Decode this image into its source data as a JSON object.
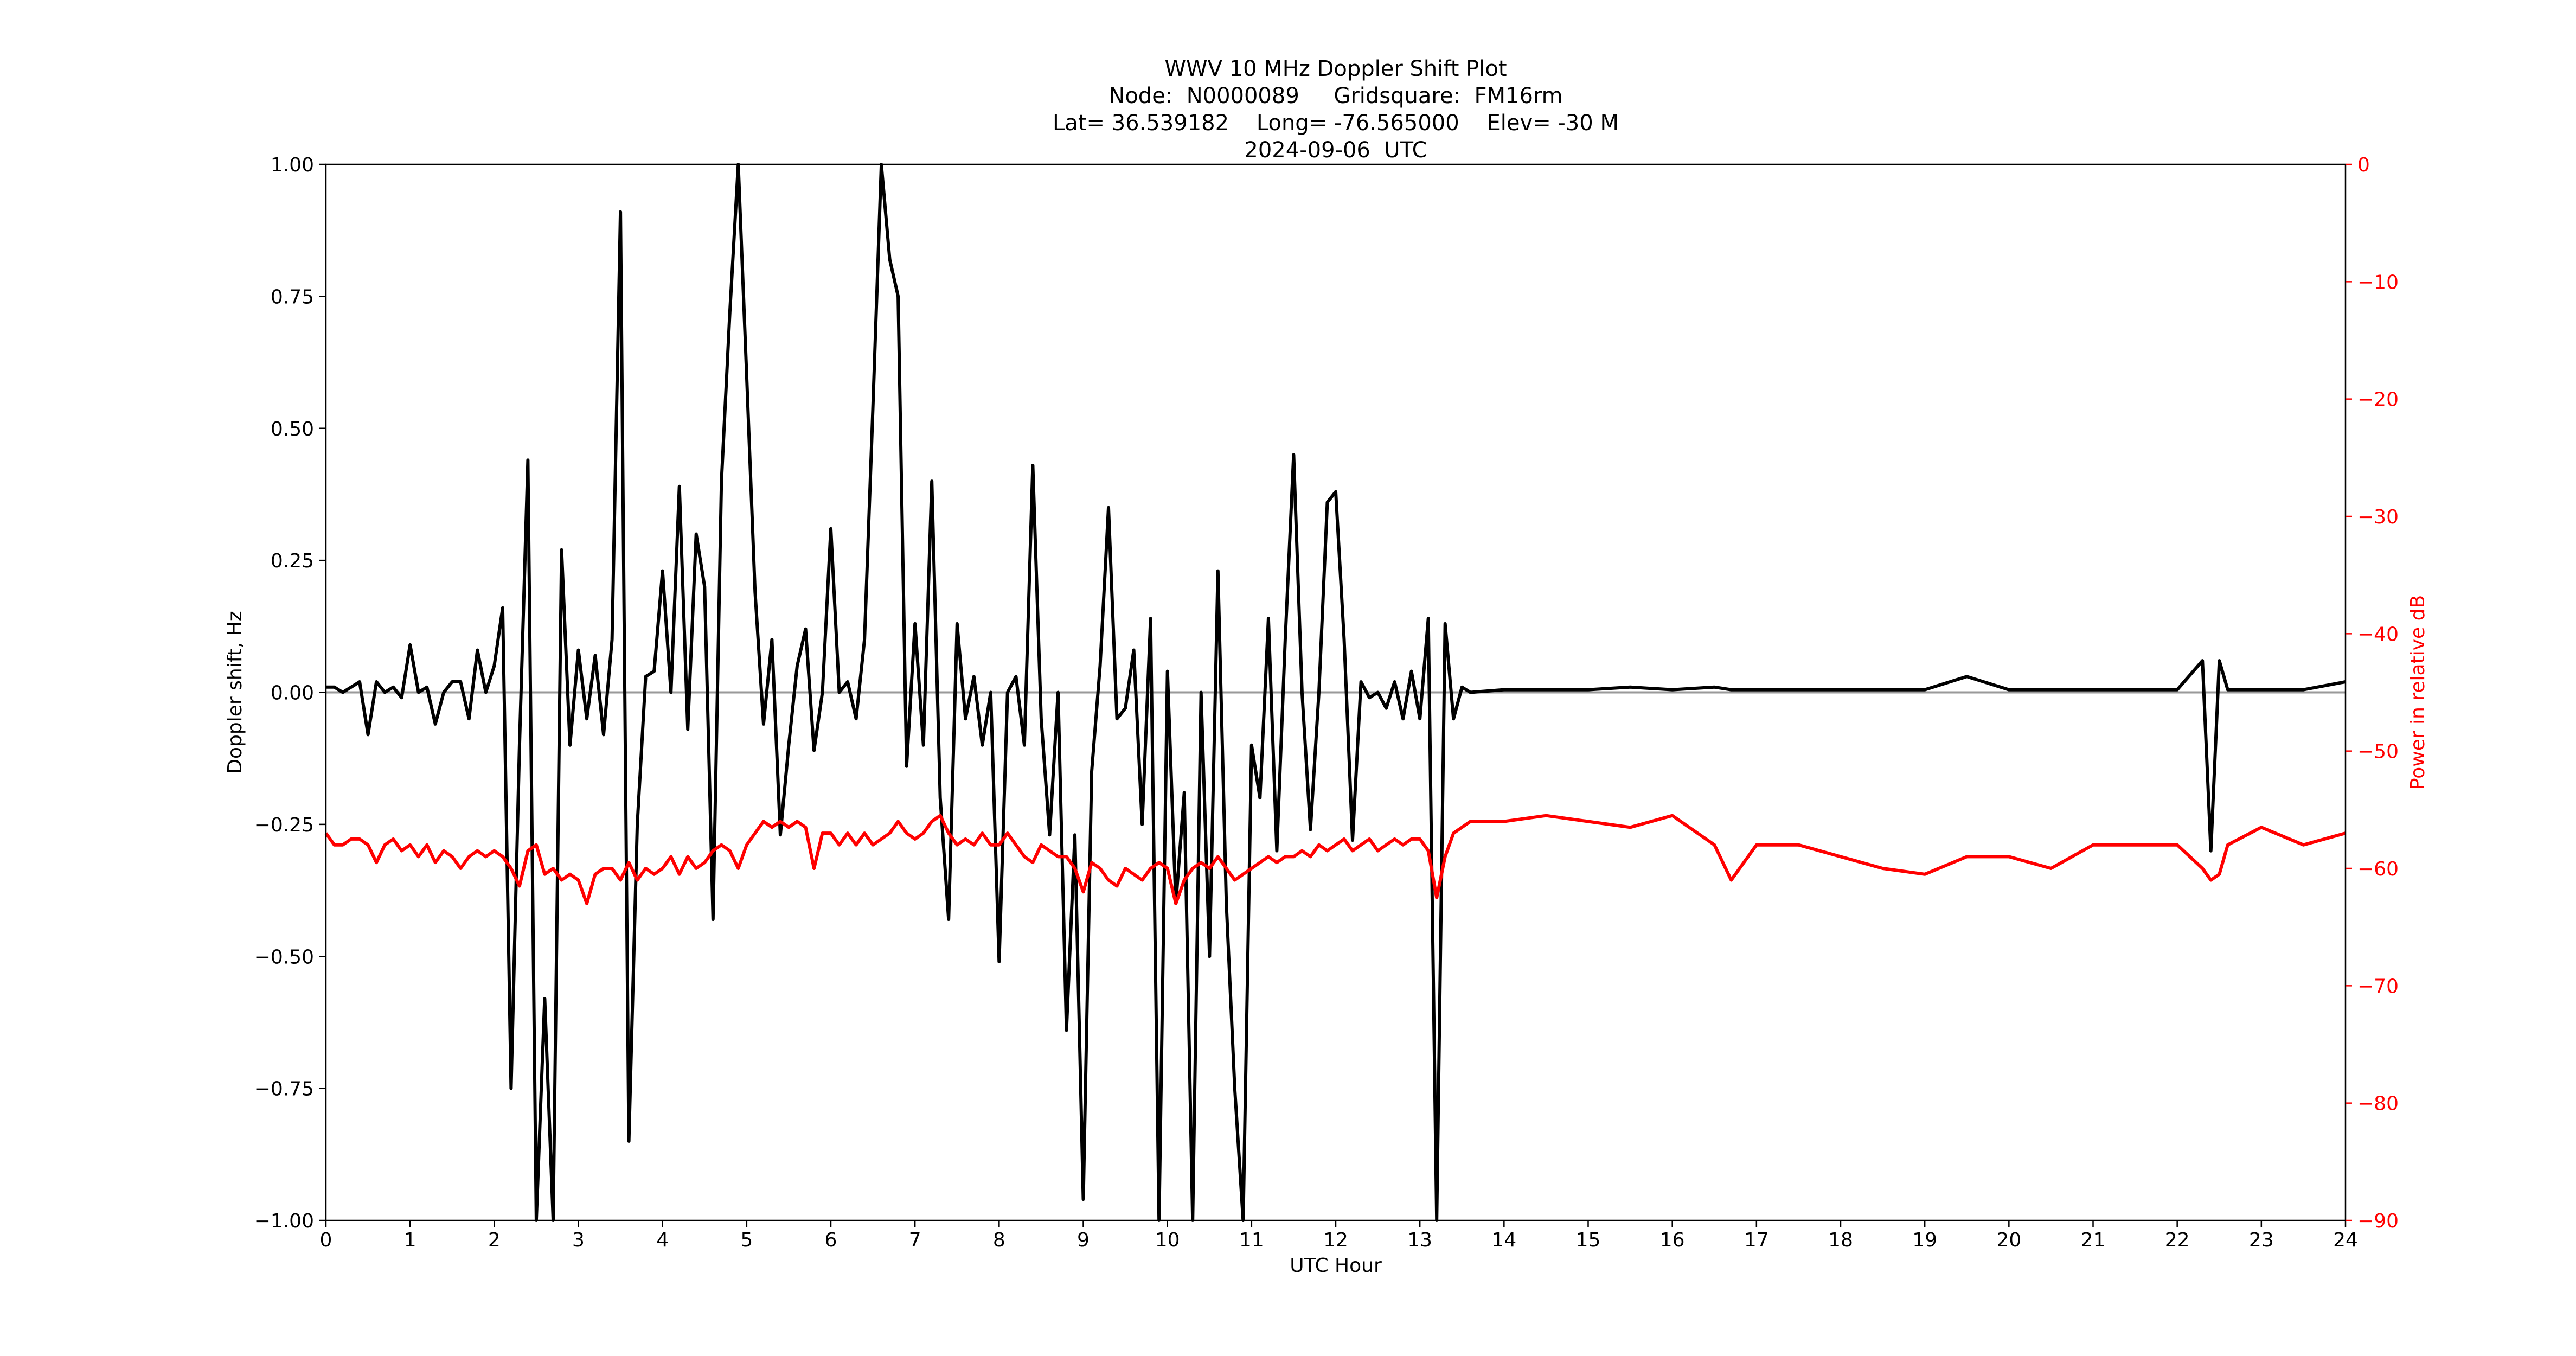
{
  "chart_data": {
    "type": "line",
    "title": [
      "WWV 10 MHz Doppler Shift Plot",
      "Node:  N0000089     Gridsquare:  FM16rm",
      "Lat= 36.539182    Long= -76.565000    Elev= -30 M",
      "2024-09-06  UTC"
    ],
    "x_label": "UTC Hour",
    "y_label": "Doppler shift, Hz",
    "y2_label": "Power in relative dB",
    "y2_color": "#ff0000",
    "xlim": [
      0,
      24
    ],
    "xticks": [
      0,
      1,
      2,
      3,
      4,
      5,
      6,
      7,
      8,
      9,
      10,
      11,
      12,
      13,
      14,
      15,
      16,
      17,
      18,
      19,
      20,
      21,
      22,
      23,
      24
    ],
    "ylim": [
      -1,
      1
    ],
    "yticks": [
      {
        "value": -1,
        "label": "−1.00"
      },
      {
        "value": -0.75,
        "label": "−0.75"
      },
      {
        "value": -0.5,
        "label": "−0.50"
      },
      {
        "value": -0.25,
        "label": "−0.25"
      },
      {
        "value": 0,
        "label": "0.00"
      },
      {
        "value": 0.25,
        "label": "0.25"
      },
      {
        "value": 0.5,
        "label": "0.50"
      },
      {
        "value": 0.75,
        "label": "0.75"
      },
      {
        "value": 1,
        "label": "1.00"
      }
    ],
    "y2lim": [
      -90,
      0
    ],
    "y2ticks": [
      {
        "value": -90,
        "label": "−90"
      },
      {
        "value": -80,
        "label": "−80"
      },
      {
        "value": -70,
        "label": "−70"
      },
      {
        "value": -60,
        "label": "−60"
      },
      {
        "value": -50,
        "label": "−50"
      },
      {
        "value": -40,
        "label": "−40"
      },
      {
        "value": -30,
        "label": "−30"
      },
      {
        "value": -20,
        "label": "−20"
      },
      {
        "value": -10,
        "label": "−10"
      },
      0
    ],
    "x": [
      0,
      0.1,
      0.2,
      0.3,
      0.4,
      0.5,
      0.6,
      0.7,
      0.8,
      0.9,
      1,
      1.1,
      1.2,
      1.3,
      1.4,
      1.5,
      1.6,
      1.7,
      1.8,
      1.9,
      2,
      2.1,
      2.2,
      2.3,
      2.4,
      2.5,
      2.6,
      2.7,
      2.8,
      2.9,
      3,
      3.1,
      3.2,
      3.3,
      3.4,
      3.5,
      3.6,
      3.7,
      3.8,
      3.9,
      4,
      4.1,
      4.2,
      4.3,
      4.4,
      4.5,
      4.6,
      4.7,
      4.8,
      4.9,
      5,
      5.1,
      5.2,
      5.3,
      5.4,
      5.5,
      5.6,
      5.7,
      5.8,
      5.9,
      6,
      6.1,
      6.2,
      6.3,
      6.4,
      6.5,
      6.6,
      6.7,
      6.8,
      6.9,
      7,
      7.1,
      7.2,
      7.3,
      7.4,
      7.5,
      7.6,
      7.7,
      7.8,
      7.9,
      8,
      8.1,
      8.2,
      8.3,
      8.4,
      8.5,
      8.6,
      8.7,
      8.8,
      8.9,
      9,
      9.1,
      9.2,
      9.3,
      9.4,
      9.5,
      9.6,
      9.7,
      9.8,
      9.9,
      10,
      10.1,
      10.2,
      10.3,
      10.4,
      10.5,
      10.6,
      10.7,
      10.8,
      10.9,
      11,
      11.1,
      11.2,
      11.3,
      11.4,
      11.5,
      11.6,
      11.7,
      11.8,
      11.9,
      12,
      12.1,
      12.2,
      12.3,
      12.4,
      12.5,
      12.6,
      12.7,
      12.8,
      12.9,
      13,
      13.1,
      13.2,
      13.3,
      13.4,
      13.5,
      13.6,
      14,
      14.5,
      15,
      15.5,
      16,
      16.5,
      16.7,
      17,
      17.5,
      18,
      18.5,
      19,
      19.5,
      20,
      20.5,
      21,
      21.5,
      22,
      22.3,
      22.4,
      22.5,
      22.6,
      23,
      23.5,
      24
    ],
    "series": [
      {
        "name": "Doppler shift",
        "color": "#000000",
        "values": [
          0.01,
          0.01,
          0,
          0.01,
          0.02,
          -0.08,
          0.02,
          0,
          0.01,
          -0.01,
          0.09,
          0,
          0.01,
          -0.06,
          0,
          0.02,
          0.02,
          -0.05,
          0.08,
          0,
          0.05,
          0.16,
          -0.75,
          -0.1,
          0.44,
          -1,
          -0.58,
          -1,
          0.27,
          -0.1,
          0.08,
          -0.05,
          0.07,
          -0.08,
          0.1,
          0.91,
          -0.85,
          -0.25,
          0.03,
          0.04,
          0.23,
          0,
          0.39,
          -0.07,
          0.3,
          0.2,
          -0.43,
          0.4,
          0.72,
          1,
          0.6,
          0.19,
          -0.06,
          0.1,
          -0.27,
          -0.1,
          0.05,
          0.12,
          -0.11,
          0,
          0.31,
          0,
          0.02,
          -0.05,
          0.1,
          0.54,
          1,
          0.82,
          0.75,
          -0.14,
          0.13,
          -0.1,
          0.4,
          -0.2,
          -0.43,
          0.13,
          -0.05,
          0.03,
          -0.1,
          0,
          -0.51,
          0,
          0.03,
          -0.1,
          0.43,
          -0.05,
          -0.27,
          0,
          -0.64,
          -0.27,
          -0.96,
          -0.15,
          0.05,
          0.35,
          -0.05,
          -0.03,
          0.08,
          -0.25,
          0.14,
          -1,
          0.04,
          -0.4,
          -0.19,
          -1,
          0,
          -0.5,
          0.23,
          -0.4,
          -0.75,
          -1,
          -0.1,
          -0.2,
          0.14,
          -0.3,
          0.1,
          0.45,
          0,
          -0.26,
          0,
          0.36,
          0.38,
          0.1,
          -0.28,
          0.02,
          -0.01,
          0,
          -0.03,
          0.02,
          -0.05,
          0.04,
          -0.05,
          0.14,
          -1,
          0.13,
          -0.05,
          0.01,
          0,
          0.005,
          0.005,
          0.005,
          0.01,
          0.005,
          0.01,
          0.005,
          0.005,
          0.005,
          0.005,
          0.005,
          0.005,
          0.03,
          0.005,
          0.005,
          0.005,
          0.005,
          0.005,
          0.06,
          -0.3,
          0.06,
          0.005,
          0.005,
          0.005,
          0.02
        ]
      },
      {
        "name": "Power",
        "color": "#ff0000",
        "axis": "y2",
        "values": [
          -57,
          -58,
          -58,
          -57.5,
          -57.5,
          -58,
          -59.5,
          -58,
          -57.5,
          -58.5,
          -58,
          -59,
          -58,
          -59.5,
          -58.5,
          -59,
          -60,
          -59,
          -58.5,
          -59,
          -58.5,
          -59,
          -60,
          -61.5,
          -58.5,
          -58,
          -60.5,
          -60,
          -61,
          -60.5,
          -61,
          -63,
          -60.5,
          -60,
          -60,
          -61,
          -59.5,
          -61,
          -60,
          -60.5,
          -60,
          -59,
          -60.5,
          -59,
          -60,
          -59.5,
          -58.5,
          -58,
          -58.5,
          -60,
          -58,
          -57,
          -56,
          -56.5,
          -56,
          -56.5,
          -56,
          -56.5,
          -60,
          -57,
          -57,
          -58,
          -57,
          -58,
          -57,
          -58,
          -57.5,
          -57,
          -56,
          -57,
          -57.5,
          -57,
          -56,
          -55.5,
          -57,
          -58,
          -57.5,
          -58,
          -57,
          -58,
          -58,
          -57,
          -58,
          -59,
          -59.5,
          -58,
          -58.5,
          -59,
          -59,
          -60,
          -62,
          -59.5,
          -60,
          -61,
          -61.5,
          -60,
          -60.5,
          -61,
          -60,
          -59.5,
          -60,
          -63,
          -61,
          -60,
          -59.5,
          -60,
          -59,
          -60,
          -61,
          -60.5,
          -60,
          -59.5,
          -59,
          -59.5,
          -59,
          -59,
          -58.5,
          -59,
          -58,
          -58.5,
          -58,
          -57.5,
          -58.5,
          -58,
          -57.5,
          -58.5,
          -58,
          -57.5,
          -58,
          -57.5,
          -57.5,
          -58.5,
          -62.5,
          -59,
          -57,
          -56.5,
          -56,
          -56,
          -55.5,
          -56,
          -56.5,
          -55.5,
          -58,
          -61,
          -58,
          -58,
          -59,
          -60,
          -60.5,
          -59,
          -59,
          -60,
          -58,
          -58,
          -58,
          -60,
          -61,
          -60.5,
          -58,
          -56.5,
          -58,
          -57
        ]
      }
    ]
  }
}
